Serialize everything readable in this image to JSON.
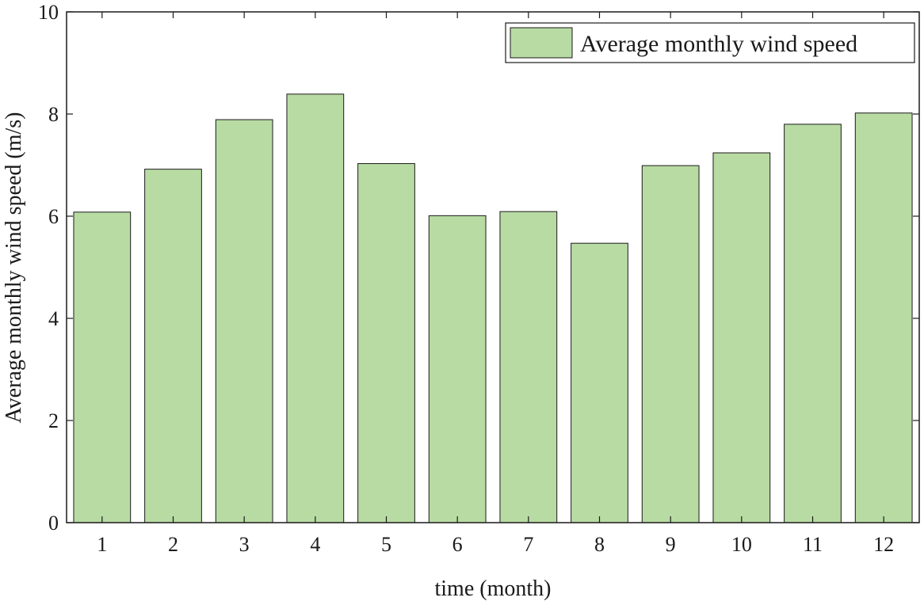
{
  "chart_data": {
    "type": "bar",
    "categories": [
      "1",
      "2",
      "3",
      "4",
      "5",
      "6",
      "7",
      "8",
      "9",
      "10",
      "11",
      "12"
    ],
    "series": [
      {
        "name": "Average monthly wind speed",
        "values": [
          6.08,
          6.92,
          7.89,
          8.39,
          7.03,
          6.01,
          6.09,
          5.47,
          6.99,
          7.24,
          7.8,
          8.02
        ]
      }
    ],
    "xlabel": "time (month)",
    "ylabel": "Average monthly wind speed (m/s)",
    "ylim": [
      0,
      10
    ],
    "yticks": [
      "0",
      "2",
      "4",
      "6",
      "8",
      "10"
    ],
    "grid": false,
    "legend_position": "top-right",
    "bar_color": "#b8dba3",
    "edge_color": "#1a1a1a"
  }
}
